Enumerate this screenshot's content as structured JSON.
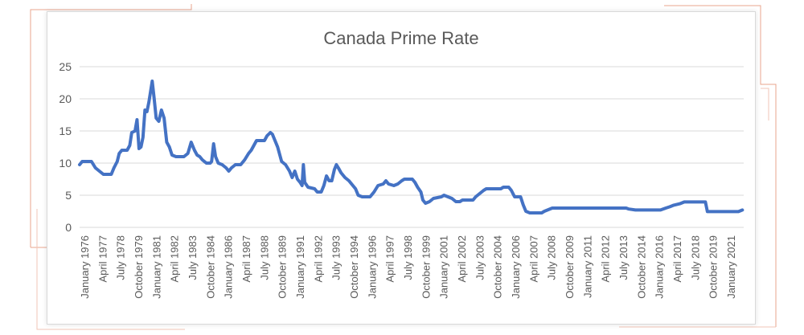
{
  "chart_data": {
    "type": "line",
    "title": "Canada Prime Rate",
    "xlabel": "",
    "ylabel": "",
    "ylim": [
      0,
      25
    ],
    "yticks": [
      0,
      5,
      10,
      15,
      20,
      25
    ],
    "grid": "horizontal",
    "legend": "none",
    "line_color": "#4472C4",
    "x_tick_labels": [
      "January 1976",
      "April 1977",
      "July 1978",
      "October 1979",
      "January 1981",
      "April 1982",
      "July 1983",
      "October 1984",
      "January 1986",
      "April 1987",
      "July 1988",
      "October 1989",
      "January 1991",
      "April 1992",
      "July 1993",
      "October 1994",
      "January 1996",
      "April 1997",
      "July 1998",
      "October 1999",
      "January 2001",
      "April 2002",
      "July 2003",
      "October 2004",
      "January 2006",
      "April 2007",
      "July 2008",
      "October 2009",
      "January 2011",
      "April 2012",
      "July 2013",
      "October 2014",
      "January 2016",
      "April 2017",
      "July 2018",
      "October 2019",
      "January 2021"
    ],
    "series": [
      {
        "values": [
          [
            1976.0,
            9.75
          ],
          [
            1976.2,
            10.25
          ],
          [
            1976.9,
            10.25
          ],
          [
            1977.2,
            9.25
          ],
          [
            1977.5,
            8.75
          ],
          [
            1977.8,
            8.25
          ],
          [
            1978.4,
            8.25
          ],
          [
            1978.6,
            9.25
          ],
          [
            1978.85,
            10.25
          ],
          [
            1979.0,
            11.5
          ],
          [
            1979.2,
            12.0
          ],
          [
            1979.6,
            12.0
          ],
          [
            1979.8,
            12.75
          ],
          [
            1979.95,
            14.75
          ],
          [
            1980.2,
            15.0
          ],
          [
            1980.35,
            16.75
          ],
          [
            1980.5,
            12.25
          ],
          [
            1980.65,
            12.5
          ],
          [
            1980.8,
            14.0
          ],
          [
            1980.95,
            18.25
          ],
          [
            1981.1,
            18.0
          ],
          [
            1981.25,
            19.5
          ],
          [
            1981.5,
            22.75
          ],
          [
            1981.65,
            20.0
          ],
          [
            1981.8,
            17.0
          ],
          [
            1982.0,
            16.5
          ],
          [
            1982.2,
            18.25
          ],
          [
            1982.4,
            17.0
          ],
          [
            1982.6,
            13.25
          ],
          [
            1982.8,
            12.5
          ],
          [
            1983.0,
            11.25
          ],
          [
            1983.3,
            11.0
          ],
          [
            1983.9,
            11.0
          ],
          [
            1984.2,
            11.5
          ],
          [
            1984.45,
            13.25
          ],
          [
            1984.7,
            12.0
          ],
          [
            1984.9,
            11.25
          ],
          [
            1985.1,
            11.0
          ],
          [
            1985.3,
            10.5
          ],
          [
            1985.6,
            10.0
          ],
          [
            1985.9,
            10.0
          ],
          [
            1986.0,
            10.25
          ],
          [
            1986.15,
            13.0
          ],
          [
            1986.3,
            11.0
          ],
          [
            1986.5,
            10.0
          ],
          [
            1986.8,
            9.75
          ],
          [
            1987.1,
            9.25
          ],
          [
            1987.3,
            8.75
          ],
          [
            1987.5,
            9.25
          ],
          [
            1987.8,
            9.75
          ],
          [
            1988.2,
            9.75
          ],
          [
            1988.5,
            10.5
          ],
          [
            1988.8,
            11.5
          ],
          [
            1989.0,
            12.0
          ],
          [
            1989.2,
            12.75
          ],
          [
            1989.4,
            13.5
          ],
          [
            1990.0,
            13.5
          ],
          [
            1990.2,
            14.25
          ],
          [
            1990.45,
            14.75
          ],
          [
            1990.6,
            14.5
          ],
          [
            1990.8,
            13.5
          ],
          [
            1991.0,
            12.5
          ],
          [
            1991.3,
            10.25
          ],
          [
            1991.6,
            9.75
          ],
          [
            1991.9,
            8.75
          ],
          [
            1992.1,
            7.75
          ],
          [
            1992.3,
            8.75
          ],
          [
            1992.5,
            7.5
          ],
          [
            1992.7,
            7.0
          ],
          [
            1992.85,
            6.5
          ],
          [
            1992.95,
            9.75
          ],
          [
            1993.05,
            7.0
          ],
          [
            1993.3,
            6.25
          ],
          [
            1993.8,
            6.0
          ],
          [
            1994.0,
            5.5
          ],
          [
            1994.3,
            5.5
          ],
          [
            1994.5,
            6.5
          ],
          [
            1994.7,
            8.0
          ],
          [
            1994.9,
            7.25
          ],
          [
            1995.1,
            7.25
          ],
          [
            1995.3,
            9.0
          ],
          [
            1995.45,
            9.75
          ],
          [
            1995.6,
            9.25
          ],
          [
            1995.8,
            8.5
          ],
          [
            1996.1,
            7.75
          ],
          [
            1996.4,
            7.25
          ],
          [
            1996.7,
            6.5
          ],
          [
            1996.9,
            6.0
          ],
          [
            1997.1,
            5.0
          ],
          [
            1997.4,
            4.75
          ],
          [
            1998.0,
            4.75
          ],
          [
            1998.3,
            5.5
          ],
          [
            1998.6,
            6.5
          ],
          [
            1999.0,
            6.75
          ],
          [
            1999.2,
            7.25
          ],
          [
            1999.4,
            6.75
          ],
          [
            1999.8,
            6.5
          ],
          [
            2000.1,
            6.75
          ],
          [
            2000.4,
            7.25
          ],
          [
            2000.6,
            7.5
          ],
          [
            2001.2,
            7.5
          ],
          [
            2001.4,
            7.0
          ],
          [
            2001.6,
            6.25
          ],
          [
            2001.85,
            5.5
          ],
          [
            2002.0,
            4.25
          ],
          [
            2002.2,
            3.75
          ],
          [
            2002.5,
            4.0
          ],
          [
            2002.8,
            4.5
          ],
          [
            2003.4,
            4.75
          ],
          [
            2003.6,
            5.0
          ],
          [
            2003.9,
            4.75
          ],
          [
            2004.2,
            4.5
          ],
          [
            2004.5,
            4.0
          ],
          [
            2004.8,
            4.0
          ],
          [
            2005.0,
            4.25
          ],
          [
            2005.8,
            4.25
          ],
          [
            2006.0,
            4.75
          ],
          [
            2006.3,
            5.25
          ],
          [
            2006.6,
            5.75
          ],
          [
            2006.8,
            6.0
          ],
          [
            2007.9,
            6.0
          ],
          [
            2008.1,
            6.25
          ],
          [
            2008.5,
            6.25
          ],
          [
            2008.7,
            5.75
          ],
          [
            2008.95,
            4.75
          ],
          [
            2009.4,
            4.75
          ],
          [
            2009.6,
            3.5
          ],
          [
            2009.8,
            2.5
          ],
          [
            2010.1,
            2.25
          ],
          [
            2011.0,
            2.25
          ],
          [
            2011.2,
            2.5
          ],
          [
            2011.5,
            2.75
          ],
          [
            2011.8,
            3.0
          ],
          [
            2017.4,
            3.0
          ],
          [
            2017.6,
            2.85
          ],
          [
            2018.1,
            2.7
          ],
          [
            2020.0,
            2.7
          ],
          [
            2020.4,
            3.0
          ],
          [
            2020.7,
            3.2
          ],
          [
            2021.0,
            3.45
          ],
          [
            2021.5,
            3.7
          ],
          [
            2021.8,
            3.95
          ],
          [
            2023.4,
            3.95
          ],
          [
            2023.55,
            2.45
          ],
          [
            2025.9,
            2.45
          ],
          [
            2026.2,
            2.7
          ]
        ]
      }
    ]
  }
}
